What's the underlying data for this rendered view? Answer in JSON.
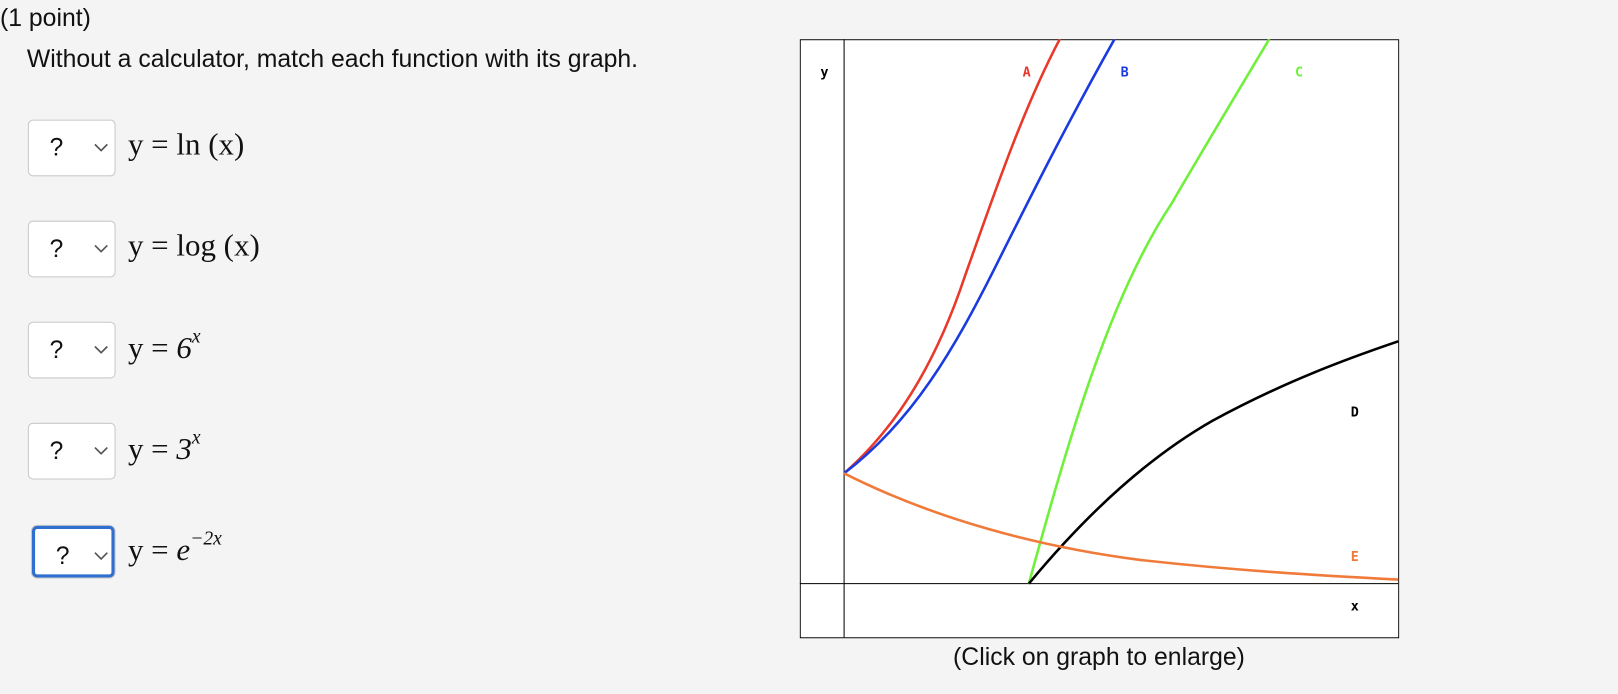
{
  "header": {
    "points": "(1 point)",
    "question": "Without a calculator, match each function with its graph."
  },
  "items": [
    {
      "select": "?",
      "lhs": "y =",
      "rhs": "ln (x)"
    },
    {
      "select": "?",
      "lhs": "y =",
      "rhs": "log (x)"
    },
    {
      "select": "?",
      "lhs": "y =",
      "base": "6",
      "exponent": "x"
    },
    {
      "select": "?",
      "lhs": "y =",
      "base": "3",
      "exponent": "x"
    },
    {
      "select": "?",
      "lhs": "y =",
      "base": "e",
      "exponent": "−2x"
    }
  ],
  "graph": {
    "y_label": "y",
    "x_label": "x",
    "curve_labels": [
      "A",
      "B",
      "C",
      "D",
      "E"
    ],
    "caption": "(Click on graph to enlarge)"
  }
}
